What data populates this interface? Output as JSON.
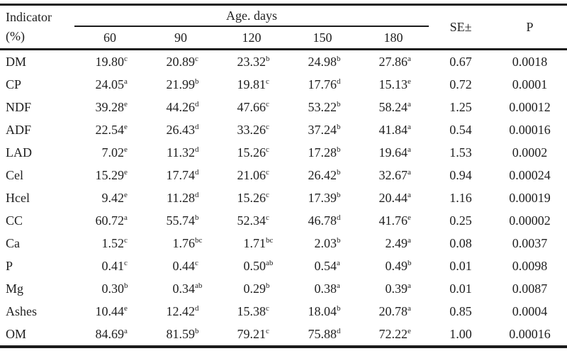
{
  "table": {
    "header": {
      "indicator_line1": "Indicator",
      "indicator_line2": "(%)",
      "group_label": "Age. days",
      "age_columns": [
        "60",
        "90",
        "120",
        "150",
        "180"
      ],
      "se_label": "SE±",
      "p_label": "P"
    },
    "rows": [
      {
        "indicator": "DM",
        "values": [
          {
            "v": "19.80",
            "s": "c"
          },
          {
            "v": "20.89",
            "s": "c"
          },
          {
            "v": "23.32",
            "s": "b"
          },
          {
            "v": "24.98",
            "s": "b"
          },
          {
            "v": "27.86",
            "s": "a"
          }
        ],
        "se": "0.67",
        "p": "0.0018"
      },
      {
        "indicator": "CP",
        "values": [
          {
            "v": "24.05",
            "s": "a"
          },
          {
            "v": "21.99",
            "s": "b"
          },
          {
            "v": "19.81",
            "s": "c"
          },
          {
            "v": "17.76",
            "s": "d"
          },
          {
            "v": "15.13",
            "s": "e"
          }
        ],
        "se": "0.72",
        "p": "0.0001"
      },
      {
        "indicator": "NDF",
        "values": [
          {
            "v": "39.28",
            "s": "e"
          },
          {
            "v": "44.26",
            "s": "d"
          },
          {
            "v": "47.66",
            "s": "c"
          },
          {
            "v": "53.22",
            "s": "b"
          },
          {
            "v": "58.24",
            "s": "a"
          }
        ],
        "se": "1.25",
        "p": "0.00012"
      },
      {
        "indicator": "ADF",
        "values": [
          {
            "v": "22.54",
            "s": "e"
          },
          {
            "v": "26.43",
            "s": "d"
          },
          {
            "v": "33.26",
            "s": "c"
          },
          {
            "v": "37.24",
            "s": "b"
          },
          {
            "v": "41.84",
            "s": "a"
          }
        ],
        "se": "0.54",
        "p": "0.00016"
      },
      {
        "indicator": "LAD",
        "values": [
          {
            "v": "7.02",
            "s": "e"
          },
          {
            "v": "11.32",
            "s": "d"
          },
          {
            "v": "15.26",
            "s": "c"
          },
          {
            "v": "17.28",
            "s": "b"
          },
          {
            "v": "19.64",
            "s": "a"
          }
        ],
        "se": "1.53",
        "p": "0.0002"
      },
      {
        "indicator": "Cel",
        "values": [
          {
            "v": "15.29",
            "s": "e"
          },
          {
            "v": "17.74",
            "s": "d"
          },
          {
            "v": "21.06",
            "s": "c"
          },
          {
            "v": "26.42",
            "s": "b"
          },
          {
            "v": "32.67",
            "s": "a"
          }
        ],
        "se": "0.94",
        "p": "0.00024"
      },
      {
        "indicator": "Hcel",
        "values": [
          {
            "v": "9.42",
            "s": "e"
          },
          {
            "v": "11.28",
            "s": "d"
          },
          {
            "v": "15.26",
            "s": "c"
          },
          {
            "v": "17.39",
            "s": "b"
          },
          {
            "v": "20.44",
            "s": "a"
          }
        ],
        "se": "1.16",
        "p": "0.00019"
      },
      {
        "indicator": "CC",
        "values": [
          {
            "v": "60.72",
            "s": "a"
          },
          {
            "v": "55.74",
            "s": "b"
          },
          {
            "v": "52.34",
            "s": "c"
          },
          {
            "v": "46.78",
            "s": "d"
          },
          {
            "v": "41.76",
            "s": "e"
          }
        ],
        "se": "0.25",
        "p": "0.00002"
      },
      {
        "indicator": "Ca",
        "values": [
          {
            "v": "1.52",
            "s": "c"
          },
          {
            "v": "1.76",
            "s": "bc"
          },
          {
            "v": "1.71",
            "s": "bc"
          },
          {
            "v": "2.03",
            "s": "b"
          },
          {
            "v": "2.49",
            "s": "a"
          }
        ],
        "se": "0.08",
        "p": "0.0037"
      },
      {
        "indicator": "P",
        "values": [
          {
            "v": "0.41",
            "s": "c"
          },
          {
            "v": "0.44",
            "s": "c"
          },
          {
            "v": "0.50",
            "s": "ab"
          },
          {
            "v": "0.54",
            "s": "a"
          },
          {
            "v": "0.49",
            "s": "b"
          }
        ],
        "se": "0.01",
        "p": "0.0098"
      },
      {
        "indicator": "Mg",
        "values": [
          {
            "v": "0.30",
            "s": "b"
          },
          {
            "v": "0.34",
            "s": "ab"
          },
          {
            "v": "0.29",
            "s": "b"
          },
          {
            "v": "0.38",
            "s": "a"
          },
          {
            "v": "0.39",
            "s": "a"
          }
        ],
        "se": "0.01",
        "p": "0.0087"
      },
      {
        "indicator": "Ashes",
        "values": [
          {
            "v": "10.44",
            "s": "e"
          },
          {
            "v": "12.42",
            "s": "d"
          },
          {
            "v": "15.38",
            "s": "c"
          },
          {
            "v": "18.04",
            "s": "b"
          },
          {
            "v": "20.78",
            "s": "a"
          }
        ],
        "se": "0.85",
        "p": "0.0004"
      },
      {
        "indicator": "OM",
        "values": [
          {
            "v": "84.69",
            "s": "a"
          },
          {
            "v": "81.59",
            "s": "b"
          },
          {
            "v": "79.21",
            "s": "c"
          },
          {
            "v": "75.88",
            "s": "d"
          },
          {
            "v": "72.22",
            "s": "e"
          }
        ],
        "se": "1.00",
        "p": "0.00016"
      }
    ]
  }
}
